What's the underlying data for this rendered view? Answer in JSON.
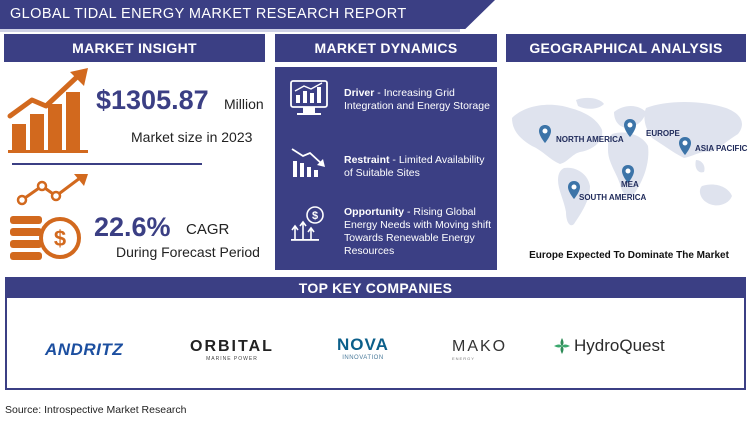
{
  "header": {
    "title": "GLOBAL TIDAL ENERGY MARKET RESEARCH REPORT"
  },
  "market_insight": {
    "heading": "MARKET INSIGHT",
    "market_value": "$1305.87",
    "market_unit": "Million",
    "market_caption": "Market size in 2023",
    "cagr_value": "22.6%",
    "cagr_label": "CAGR",
    "cagr_caption": "During Forecast Period"
  },
  "market_dynamics": {
    "heading": "MARKET DYNAMICS",
    "items": [
      {
        "title": "Driver",
        "text": " - Increasing Grid Integration and Energy Storage",
        "icon": "market-chart-icon"
      },
      {
        "title": "Restraint",
        "text": " - Limited Availability of Suitable Sites",
        "icon": "declining-chart-icon"
      },
      {
        "title": "Opportunity",
        "text": " - Rising Global Energy Needs with Moving shift Towards Renewable Energy Resources",
        "icon": "growth-money-icon"
      }
    ]
  },
  "geographical_analysis": {
    "heading": "GEOGRAPHICAL ANALYSIS",
    "regions": [
      "NORTH AMERICA",
      "EUROPE",
      "ASIA PACIFIC",
      "MEA",
      "SOUTH AMERICA"
    ],
    "caption": "Europe  Expected To Dominate The Market"
  },
  "companies": {
    "heading": "TOP KEY COMPANIES",
    "logos": [
      {
        "name": "ANDRITZ",
        "color": "#1c4fa0"
      },
      {
        "name": "ORBITAL",
        "sub": "MARINE POWER",
        "color": "#222222"
      },
      {
        "name": "NOVA",
        "sub": "INNOVATION",
        "color": "#0b5f8a"
      },
      {
        "name": "MAKO",
        "sub": "ENERGY",
        "color": "#333333"
      },
      {
        "name": "HydroQuest",
        "color": "#2b2b2b"
      }
    ]
  },
  "footer": {
    "source": "Source: Introspective Market Research"
  },
  "colors": {
    "primary": "#3b3f84",
    "accent": "#d2691e"
  }
}
